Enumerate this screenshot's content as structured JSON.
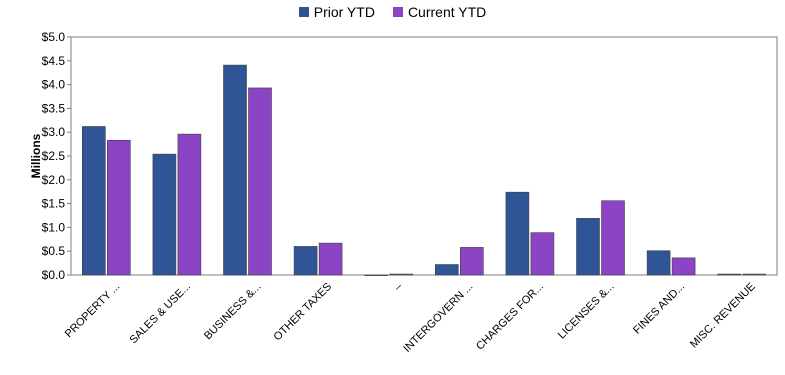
{
  "chart_data": {
    "type": "bar",
    "ylabel": "Millions",
    "ylim": [
      0,
      5.0
    ],
    "yticks": [
      "$0.0",
      "$0.5",
      "$1.0",
      "$1.5",
      "$2.0",
      "$2.5",
      "$3.0",
      "$3.5",
      "$4.0",
      "$4.5",
      "$5.0"
    ],
    "categories": [
      "PROPERTY ...",
      "SALES & USE...",
      "BUSINESS &...",
      "OTHER TAXES",
      "–",
      "INTERGOVERN ...",
      "CHARGES FOR...",
      "LICENSES &...",
      "FINES AND...",
      "MISC. REVENUE"
    ],
    "series": [
      {
        "name": "Prior YTD",
        "color": "#2f5597",
        "values": [
          3.12,
          2.54,
          4.41,
          0.6,
          0.0,
          0.22,
          1.74,
          1.19,
          0.51,
          0.02
        ]
      },
      {
        "name": "Current YTD",
        "color": "#8b44c4",
        "values": [
          2.83,
          2.96,
          3.93,
          0.67,
          0.02,
          0.58,
          0.89,
          1.56,
          0.36,
          0.02
        ]
      }
    ],
    "grid": false,
    "legend_position": "top-center"
  }
}
